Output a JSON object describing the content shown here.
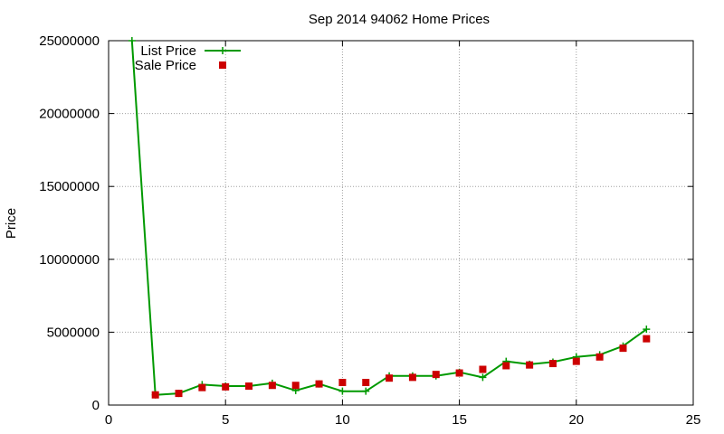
{
  "chart_data": {
    "type": "line",
    "title": "Sep 2014 94062 Home Prices",
    "xlabel": "",
    "ylabel": "Price",
    "xlim": [
      0,
      25
    ],
    "ylim": [
      0,
      25000000
    ],
    "xticks": [
      "0",
      "5",
      "10",
      "15",
      "20",
      "25"
    ],
    "yticks": [
      "0",
      "5000000",
      "10000000",
      "15000000",
      "20000000",
      "25000000"
    ],
    "grid": true,
    "legend_position": "top-left",
    "series": [
      {
        "name": "List Price",
        "style": "line-plus",
        "color": "#009900",
        "x": [
          1,
          2,
          3,
          4,
          5,
          6,
          7,
          8,
          9,
          10,
          11,
          12,
          13,
          14,
          15,
          16,
          17,
          18,
          19,
          20,
          21,
          22,
          23
        ],
        "y": [
          25000000,
          700000,
          800000,
          1400000,
          1300000,
          1300000,
          1500000,
          1000000,
          1450000,
          950000,
          950000,
          2000000,
          2000000,
          2000000,
          2250000,
          1900000,
          3000000,
          2800000,
          2950000,
          3300000,
          3450000,
          4050000,
          5200000
        ]
      },
      {
        "name": "Sale Price",
        "style": "square-points",
        "color": "#cc0000",
        "x": [
          2,
          3,
          4,
          5,
          6,
          7,
          8,
          9,
          10,
          11,
          12,
          13,
          14,
          15,
          16,
          17,
          18,
          19,
          20,
          21,
          22,
          23
        ],
        "y": [
          700000,
          800000,
          1200000,
          1250000,
          1300000,
          1350000,
          1350000,
          1450000,
          1550000,
          1550000,
          1850000,
          1900000,
          2100000,
          2200000,
          2450000,
          2700000,
          2750000,
          2850000,
          3000000,
          3300000,
          3900000,
          4550000
        ]
      }
    ]
  }
}
